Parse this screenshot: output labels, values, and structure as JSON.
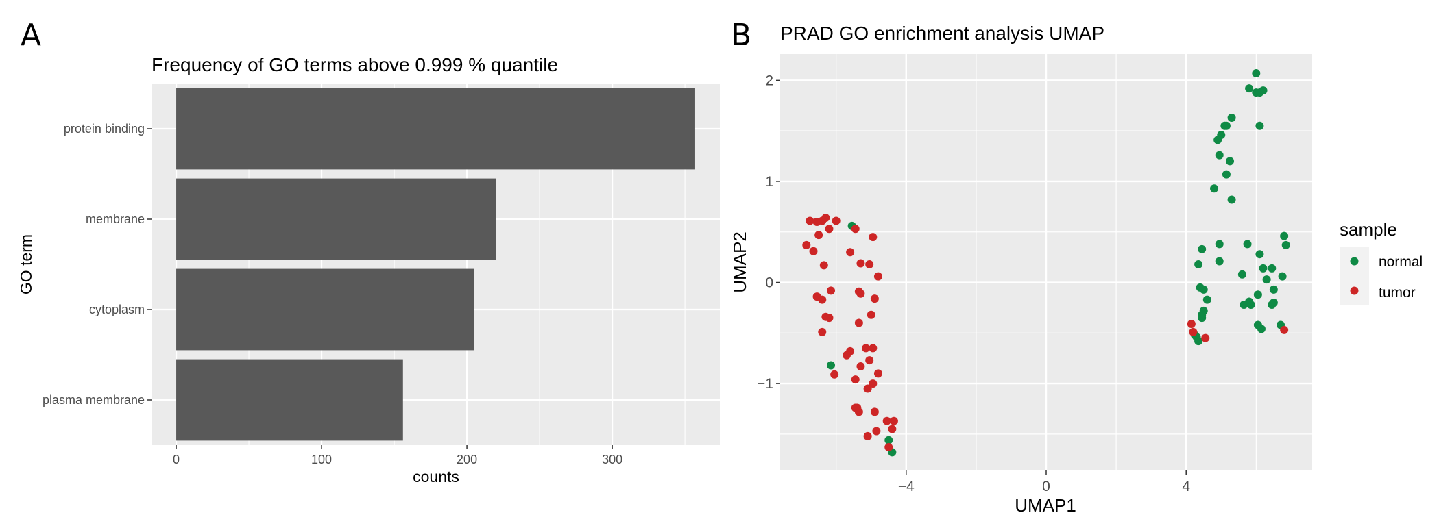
{
  "panel_labels": [
    "A",
    "B"
  ],
  "chart_data": [
    {
      "type": "bar",
      "orientation": "horizontal",
      "title": "Frequency of GO terms above 0.999 % quantile",
      "xlabel": "counts",
      "ylabel": "GO term",
      "categories": [
        "protein binding",
        "membrane",
        "cytoplasm",
        "plasma membrane"
      ],
      "values": [
        357,
        220,
        205,
        156
      ],
      "xlim": [
        -17,
        374
      ],
      "xticks": [
        0,
        100,
        200,
        300
      ],
      "grid": true,
      "colors": {
        "bar": "#595959",
        "panel": "#ebebeb",
        "grid": "#ffffff"
      }
    },
    {
      "type": "scatter",
      "title": "PRAD GO enrichment analysis UMAP",
      "xlabel": "UMAP1",
      "ylabel": "UMAP2",
      "xlim": [
        -7.6,
        7.6
      ],
      "ylim": [
        -1.86,
        2.26
      ],
      "xticks": [
        -4,
        0,
        4
      ],
      "xtick_labels": [
        "−4",
        "0",
        "4"
      ],
      "yticks": [
        -1,
        0,
        1,
        2
      ],
      "ytick_labels": [
        "−1",
        "0",
        "1",
        "2"
      ],
      "grid": true,
      "legend": {
        "title": "sample",
        "placement": "right"
      },
      "series": [
        {
          "name": "normal",
          "color": "#0f8a45",
          "points": [
            [
              6.0,
              2.07
            ],
            [
              5.8,
              1.92
            ],
            [
              6.0,
              1.88
            ],
            [
              6.1,
              1.88
            ],
            [
              6.2,
              1.9
            ],
            [
              5.3,
              1.63
            ],
            [
              5.1,
              1.55
            ],
            [
              5.15,
              1.55
            ],
            [
              6.1,
              1.55
            ],
            [
              5.0,
              1.46
            ],
            [
              4.9,
              1.41
            ],
            [
              5.25,
              1.2
            ],
            [
              4.95,
              1.26
            ],
            [
              5.15,
              1.07
            ],
            [
              4.8,
              0.93
            ],
            [
              5.3,
              0.82
            ],
            [
              6.8,
              0.46
            ],
            [
              5.75,
              0.38
            ],
            [
              6.85,
              0.37
            ],
            [
              4.95,
              0.38
            ],
            [
              6.1,
              0.28
            ],
            [
              4.45,
              0.33
            ],
            [
              4.95,
              0.21
            ],
            [
              4.35,
              0.18
            ],
            [
              6.2,
              0.14
            ],
            [
              6.45,
              0.14
            ],
            [
              6.75,
              0.06
            ],
            [
              5.6,
              0.08
            ],
            [
              6.3,
              0.03
            ],
            [
              4.4,
              -0.05
            ],
            [
              4.5,
              -0.07
            ],
            [
              6.5,
              -0.07
            ],
            [
              6.05,
              -0.12
            ],
            [
              4.6,
              -0.17
            ],
            [
              5.8,
              -0.19
            ],
            [
              6.5,
              -0.2
            ],
            [
              5.65,
              -0.22
            ],
            [
              5.85,
              -0.22
            ],
            [
              6.45,
              -0.22
            ],
            [
              4.5,
              -0.28
            ],
            [
              4.45,
              -0.32
            ],
            [
              4.45,
              -0.35
            ],
            [
              6.7,
              -0.42
            ],
            [
              6.05,
              -0.42
            ],
            [
              6.15,
              -0.46
            ],
            [
              4.25,
              -0.52
            ],
            [
              4.3,
              -0.54
            ],
            [
              4.35,
              -0.58
            ],
            [
              -5.55,
              0.56
            ],
            [
              -6.15,
              -0.82
            ],
            [
              -4.5,
              -1.56
            ],
            [
              -4.4,
              -1.68
            ]
          ]
        },
        {
          "name": "tumor",
          "color": "#cd2626",
          "points": [
            [
              -6.3,
              0.64
            ],
            [
              -6.75,
              0.61
            ],
            [
              -6.55,
              0.6
            ],
            [
              -6.4,
              0.61
            ],
            [
              -6.0,
              0.61
            ],
            [
              -5.45,
              0.53
            ],
            [
              -6.2,
              0.53
            ],
            [
              -6.5,
              0.47
            ],
            [
              -4.95,
              0.45
            ],
            [
              -6.85,
              0.37
            ],
            [
              -6.65,
              0.31
            ],
            [
              -5.6,
              0.3
            ],
            [
              -5.05,
              0.18
            ],
            [
              -5.3,
              0.19
            ],
            [
              -6.35,
              0.17
            ],
            [
              -4.8,
              0.06
            ],
            [
              -5.35,
              -0.09
            ],
            [
              -5.3,
              -0.11
            ],
            [
              -6.15,
              -0.08
            ],
            [
              -6.55,
              -0.14
            ],
            [
              -6.4,
              -0.17
            ],
            [
              -4.9,
              -0.16
            ],
            [
              -6.3,
              -0.34
            ],
            [
              -6.2,
              -0.35
            ],
            [
              -5.0,
              -0.32
            ],
            [
              -5.35,
              -0.4
            ],
            [
              -6.4,
              -0.49
            ],
            [
              -5.15,
              -0.65
            ],
            [
              -4.95,
              -0.65
            ],
            [
              -5.6,
              -0.68
            ],
            [
              -5.7,
              -0.72
            ],
            [
              -5.05,
              -0.77
            ],
            [
              -5.3,
              -0.83
            ],
            [
              -4.8,
              -0.9
            ],
            [
              -6.05,
              -0.91
            ],
            [
              -5.45,
              -0.96
            ],
            [
              -4.95,
              -1.0
            ],
            [
              -5.1,
              -1.05
            ],
            [
              -5.4,
              -1.24
            ],
            [
              -5.45,
              -1.24
            ],
            [
              -5.35,
              -1.28
            ],
            [
              -4.9,
              -1.28
            ],
            [
              -4.55,
              -1.37
            ],
            [
              -4.35,
              -1.37
            ],
            [
              -4.4,
              -1.45
            ],
            [
              -4.85,
              -1.47
            ],
            [
              -5.1,
              -1.52
            ],
            [
              -4.5,
              -1.63
            ],
            [
              4.15,
              -0.41
            ],
            [
              4.2,
              -0.49
            ],
            [
              4.55,
              -0.55
            ],
            [
              6.8,
              -0.47
            ]
          ]
        }
      ],
      "colors": {
        "panel": "#ebebeb",
        "grid": "#ffffff"
      }
    }
  ]
}
